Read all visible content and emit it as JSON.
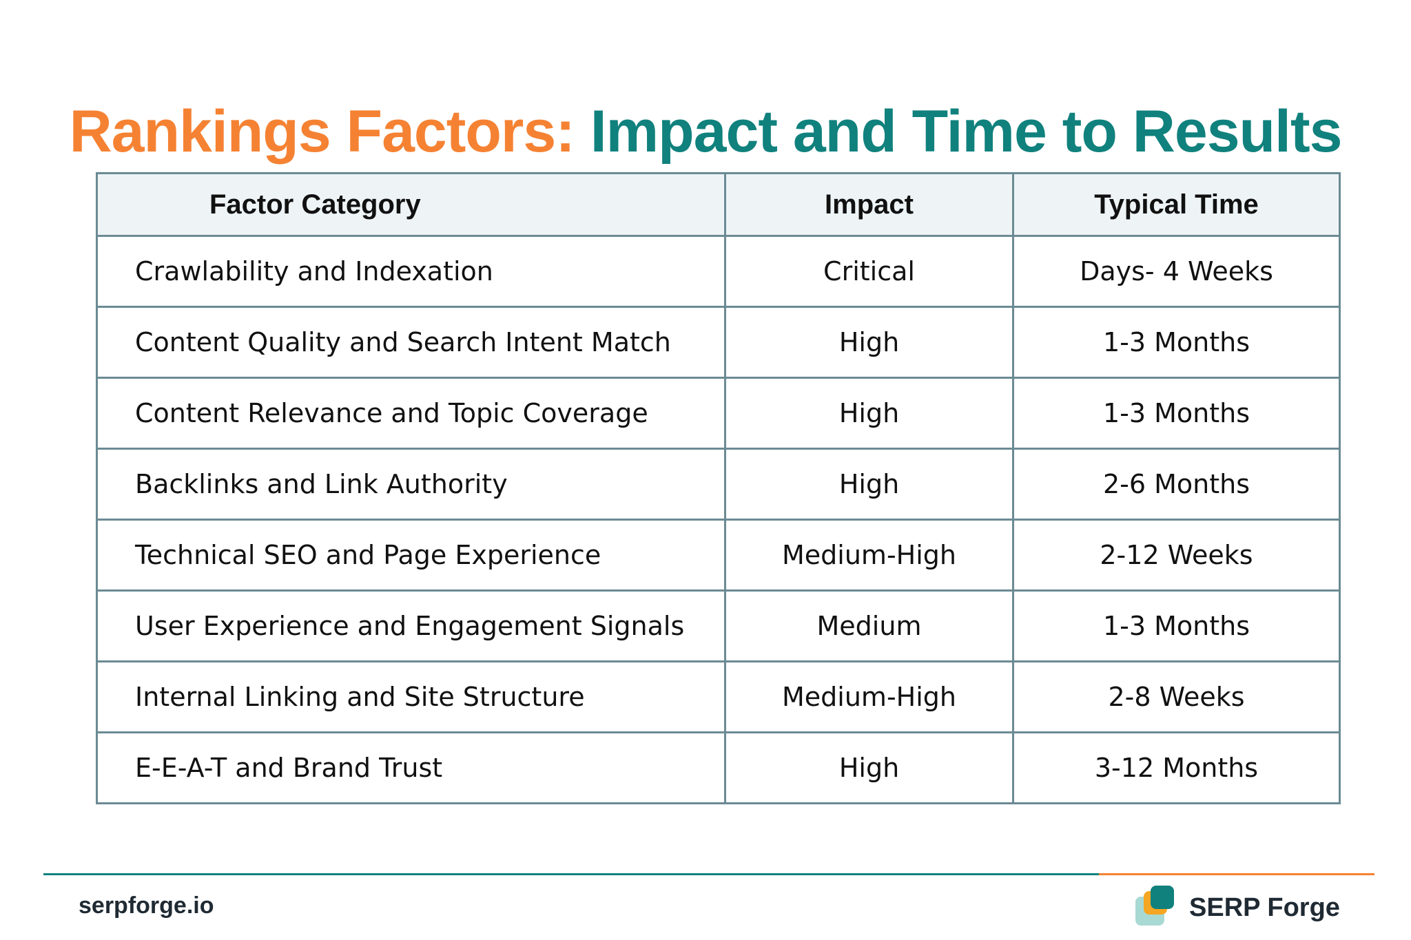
{
  "title": {
    "part1": "Rankings Factors:",
    "part2": "Impact and Time to Results",
    "color_part1": "#f58233",
    "color_part2": "#10817d"
  },
  "table": {
    "headers": {
      "factor": "Factor Category",
      "impact": "Impact",
      "time": "Typical Time"
    },
    "rows": [
      {
        "factor": "Crawlability and Indexation",
        "impact": "Critical",
        "time": "Days- 4 Weeks"
      },
      {
        "factor": "Content Quality and Search Intent Match",
        "impact": "High",
        "time": "1-3 Months"
      },
      {
        "factor": "Content Relevance and Topic Coverage",
        "impact": "High",
        "time": "1-3 Months"
      },
      {
        "factor": "Backlinks and Link Authority",
        "impact": "High",
        "time": "2-6 Months"
      },
      {
        "factor": "Technical SEO and Page Experience",
        "impact": "Medium-High",
        "time": "2-12 Weeks"
      },
      {
        "factor": "User Experience and Engagement Signals",
        "impact": "Medium",
        "time": "1-3 Months"
      },
      {
        "factor": "Internal Linking and Site Structure",
        "impact": "Medium-High",
        "time": "2-8 Weeks"
      },
      {
        "factor": "E-E-A-T and Brand Trust",
        "impact": "High",
        "time": "3-12 Months"
      }
    ]
  },
  "footer": {
    "site": "serpforge.io",
    "brand": "SERP Forge",
    "logo_icon": "stacked-squares-logo-icon"
  }
}
